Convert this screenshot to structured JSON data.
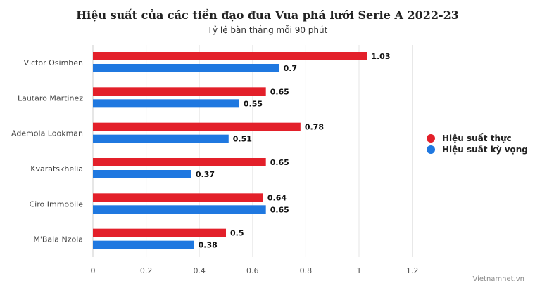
{
  "chart_data": {
    "type": "bar",
    "orientation": "horizontal",
    "title": "Hiệu suất của các tiền đạo đua Vua phá lưới Serie A 2022-23",
    "subtitle": "Tỷ lệ bàn thắng mỗi 90 phút",
    "categories": [
      "Victor Osimhen",
      "Lautaro Martinez",
      "Ademola Lookman",
      "Kvaratskhelia",
      "Ciro Immobile",
      "M'Bala Nzola"
    ],
    "series": [
      {
        "name": "Hiệu suất thực",
        "color": "#e3202a",
        "values": [
          1.03,
          0.65,
          0.78,
          0.65,
          0.64,
          0.5
        ]
      },
      {
        "name": "Hiệu suất kỳ vọng",
        "color": "#1f78e0",
        "values": [
          0.7,
          0.55,
          0.51,
          0.37,
          0.65,
          0.38
        ]
      }
    ],
    "xlim": [
      0,
      1.2
    ],
    "xticks": [
      "0",
      "0.2",
      "0.4",
      "0.6",
      "0.8",
      "1",
      "1.2"
    ],
    "tick_values": [
      0,
      0.2,
      0.4,
      0.6,
      0.8,
      1,
      1.2
    ],
    "grid": true,
    "legend_position": "right"
  },
  "credit": "Vietnamnet.vn"
}
